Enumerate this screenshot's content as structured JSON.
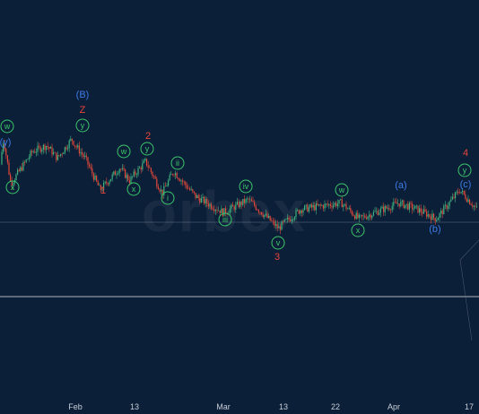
{
  "chart_data": {
    "type": "candlestick",
    "watermark": "orbex",
    "colors": {
      "background": "#0c1f38",
      "up": "#3fb27f",
      "down": "#e0483a",
      "wave_red": "#e8443a",
      "wave_blue": "#3d7ae5",
      "wave_green": "#3cc66a",
      "hline": "#8e98a8"
    },
    "x_ticks": [
      "Feb",
      "13",
      "Mar",
      "13",
      "22",
      "Apr",
      "17"
    ],
    "wave_labels": [
      {
        "text": "(B)",
        "style": "blue-text",
        "anchor": "Jan 31"
      },
      {
        "text": "Z",
        "style": "red-text",
        "anchor": "Jan 31"
      },
      {
        "text": "y",
        "style": "green-circle",
        "anchor": "Jan 31"
      },
      {
        "text": "w",
        "style": "green-circle",
        "anchor": "Jan 12"
      },
      {
        "text": "(y)",
        "style": "blue-text",
        "anchor": "Jan 12"
      },
      {
        "text": "x",
        "style": "green-circle",
        "anchor": "Jan 14"
      },
      {
        "text": "1",
        "style": "red-text",
        "anchor": "Feb 6"
      },
      {
        "text": "w",
        "style": "green-circle",
        "anchor": "Feb 10"
      },
      {
        "text": "x",
        "style": "green-circle",
        "anchor": "Feb 12"
      },
      {
        "text": "y",
        "style": "green-circle",
        "anchor": "Feb 15"
      },
      {
        "text": "2",
        "style": "red-text",
        "anchor": "Feb 16"
      },
      {
        "text": "ii",
        "style": "green-circle",
        "anchor": "Feb 20"
      },
      {
        "text": "i",
        "style": "green-circle",
        "anchor": "Feb 18"
      },
      {
        "text": "iii",
        "style": "green-circle",
        "anchor": "Mar 1"
      },
      {
        "text": "iv",
        "style": "green-circle",
        "anchor": "Mar 6"
      },
      {
        "text": "v",
        "style": "green-circle",
        "anchor": "Mar 12"
      },
      {
        "text": "3",
        "style": "red-text",
        "anchor": "Mar 12"
      },
      {
        "text": "w",
        "style": "green-circle",
        "anchor": "Mar 23"
      },
      {
        "text": "x",
        "style": "green-circle",
        "anchor": "Mar 26"
      },
      {
        "text": "(a)",
        "style": "blue-text",
        "anchor": "Apr 2"
      },
      {
        "text": "(b)",
        "style": "blue-text",
        "anchor": "Apr 10"
      },
      {
        "text": "(c)",
        "style": "blue-text",
        "anchor": "Apr 15"
      },
      {
        "text": "y",
        "style": "green-circle",
        "anchor": "Apr 15"
      },
      {
        "text": "4",
        "style": "red-text",
        "anchor": "Apr 15"
      }
    ],
    "price_path": [
      {
        "date": "Jan 11",
        "close": 1.088
      },
      {
        "date": "Jan 12",
        "close": 1.092
      },
      {
        "date": "Jan 14",
        "close": 1.085
      },
      {
        "date": "Jan 20",
        "close": 1.09
      },
      {
        "date": "Jan 24",
        "close": 1.091
      },
      {
        "date": "Jan 27",
        "close": 1.089
      },
      {
        "date": "Jan 31",
        "close": 1.092
      },
      {
        "date": "Feb 3",
        "close": 1.089
      },
      {
        "date": "Feb 6",
        "close": 1.084
      },
      {
        "date": "Feb 10",
        "close": 1.0875
      },
      {
        "date": "Feb 12",
        "close": 1.0855
      },
      {
        "date": "Feb 15",
        "close": 1.0885
      },
      {
        "date": "Feb 18",
        "close": 1.0835
      },
      {
        "date": "Feb 20",
        "close": 1.087
      },
      {
        "date": "Feb 24",
        "close": 1.083
      },
      {
        "date": "Mar 1",
        "close": 1.0805
      },
      {
        "date": "Mar 6",
        "close": 1.0825
      },
      {
        "date": "Mar 12",
        "close": 1.078
      },
      {
        "date": "Mar 16",
        "close": 1.081
      },
      {
        "date": "Mar 23",
        "close": 1.082
      },
      {
        "date": "Mar 26",
        "close": 1.0795
      },
      {
        "date": "Apr 2",
        "close": 1.082
      },
      {
        "date": "Apr 6",
        "close": 1.081
      },
      {
        "date": "Apr 10",
        "close": 1.0795
      },
      {
        "date": "Apr 15",
        "close": 1.084
      },
      {
        "date": "Apr 18",
        "close": 1.0815
      }
    ],
    "grid": false
  }
}
